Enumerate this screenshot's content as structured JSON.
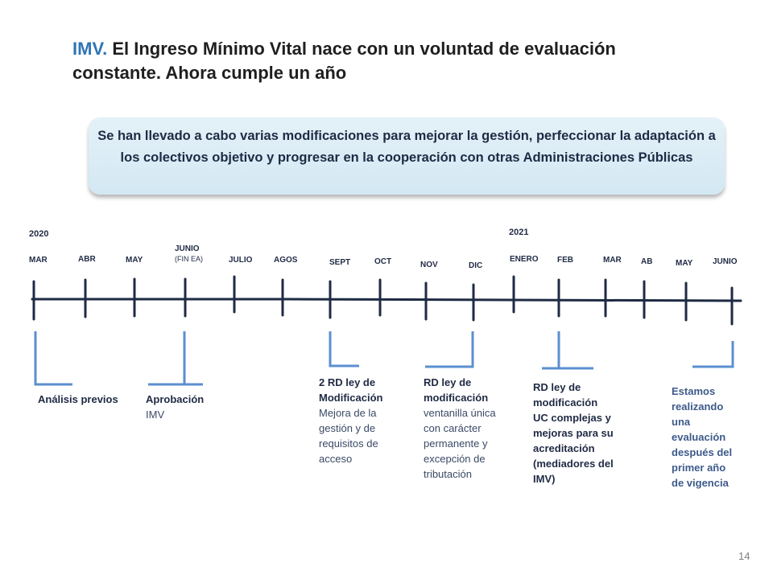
{
  "title": {
    "accent": "IMV.",
    "rest": "El Ingreso Mínimo Vital nace con un voluntad de evaluación constante. Ahora cumple un año"
  },
  "callout": {
    "part1": "Se han llevado a cabo varias",
    "bold": "modificaciones",
    "part2": "para mejorar la gestión, perfeccionar la adaptación a los colectivos objetivo y progresar en la cooperación con otras Administraciones Públicas"
  },
  "timeline": {
    "year_2020": "2020",
    "year_2021": "2021",
    "months": [
      "MAR",
      "ABR",
      "MAY",
      "JUNIO",
      "JULIO",
      "AGOS",
      "SEPT",
      "OCT",
      "NOV",
      "DIC",
      "ENERO",
      "FEB",
      "MAR",
      "AB",
      "MAY",
      "JUNIO"
    ],
    "junio_sub": "(FIN EA)"
  },
  "events": {
    "e1": {
      "title": "Análisis previos"
    },
    "e2": {
      "title": "Aprobación",
      "detail": "IMV"
    },
    "e3": {
      "title_l1": "2 RD ley de",
      "title_l2": "Modificación",
      "d1": "Mejora de la",
      "d2": "gestión y de",
      "d3": "requisitos de",
      "d4": "acceso"
    },
    "e4": {
      "title_l1": "RD ley de",
      "title_l2": "modificación",
      "d1": "ventanilla única",
      "d2": "con  carácter",
      "d3": "permanente  y",
      "d4": "excepción de",
      "d5": "tributación"
    },
    "e5": {
      "l1": "RD ley de",
      "l2": "modificación",
      "l3": "UC complejas y",
      "l4": "mejoras para su",
      "l5": "acreditación",
      "l6": "(mediadores del",
      "l7": "IMV)"
    },
    "e6": {
      "l1": "Estamos",
      "l2": "realizando",
      "l3": "una",
      "l4": "evaluación",
      "l5": "después del",
      "l6": "primer año",
      "l7": "de vigencia"
    }
  },
  "page_number": "14"
}
